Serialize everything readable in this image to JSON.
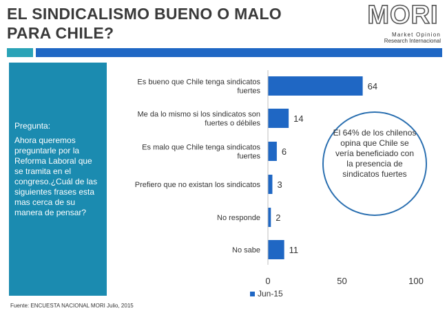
{
  "title": {
    "line1": "EL SINDICALISMO BUENO O MALO",
    "line2": "PARA CHILE?"
  },
  "logo": {
    "word": "MORI",
    "sub1": "Market Opinion",
    "sub2": "Research Internacional"
  },
  "question": {
    "label": "Pregunta:",
    "text": "Ahora queremos preguntarle por la Reforma Laboral que se tramita en el congreso.¿Cuál de las siguientes frases esta mas cerca de su manera de pensar?"
  },
  "callout": {
    "text": "El 64% de los chilenos opina que Chile se vería beneficiado con la presencia de sindicatos fuertes"
  },
  "source": "Fuente: ENCUESTA NACIONAL MORI Julio, 2015",
  "colors": {
    "bar": "#1f67c4",
    "teal": "#2aa3b7",
    "box": "#1b8bb0"
  },
  "chart_data": {
    "type": "bar",
    "orientation": "horizontal",
    "categories": [
      [
        "Es bueno que Chile tenga sindicatos",
        "fuertes"
      ],
      [
        "Me da lo mismo si los sindicatos son",
        "fuertes o débiles"
      ],
      [
        "Es malo que Chile tenga sindicatos",
        "fuertes"
      ],
      [
        "Prefiero que no existan los sindicatos"
      ],
      [
        "No responde"
      ],
      [
        "No sabe"
      ]
    ],
    "series": [
      {
        "name": "Jun-15",
        "values": [
          64,
          14,
          6,
          3,
          2,
          11
        ]
      }
    ],
    "xlim": [
      0,
      100
    ],
    "xticks": [
      0,
      50,
      100
    ],
    "legend": "bottom"
  }
}
